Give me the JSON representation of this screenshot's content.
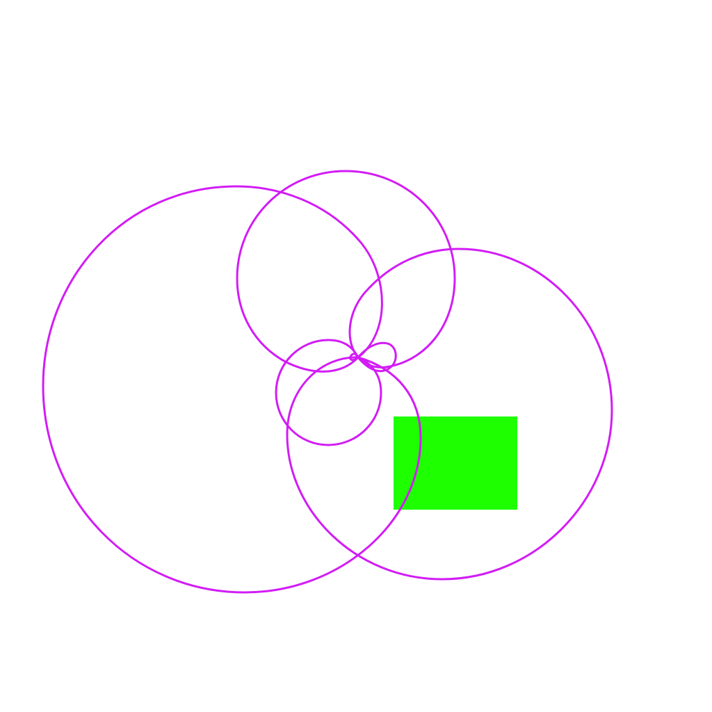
{
  "colors": {
    "background": "#ffffff",
    "stroke": "#d21cf5",
    "rect_fill": "#1eff00"
  },
  "shapes": {
    "loops": [
      "large-left-loop",
      "top-loop",
      "right-loop",
      "bottom-center-loop",
      "small-center-loop",
      "tiny-loop"
    ],
    "rectangle": "green-rectangle"
  }
}
